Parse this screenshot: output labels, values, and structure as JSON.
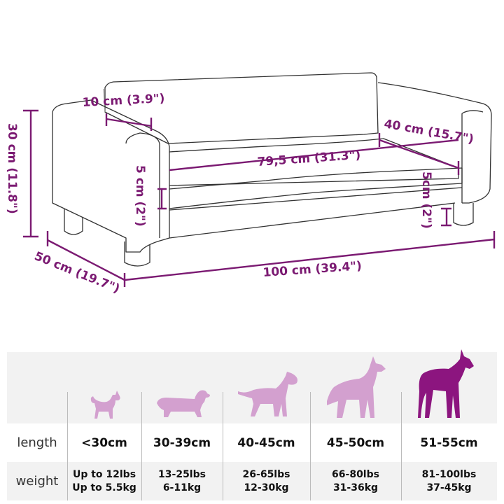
{
  "dimensions": {
    "backrest_thickness": "10 cm (3.9\")",
    "height": "30 cm (11.8\")",
    "seat_depth": "40 cm (15.7\")",
    "seat_width": "79,5 cm (31.3\")",
    "cushion_height": "5 cm (2\")",
    "leg_height": "5cm (2\")",
    "depth": "50 cm (19.7\")",
    "width": "100 cm (39.4\")"
  },
  "colors": {
    "accent": "#7b1a72",
    "dog_light": "#d3a0cf",
    "dog_highlight": "#8c157f",
    "table_bg": "#f2f2f2"
  },
  "table": {
    "row_labels": {
      "length": "length",
      "weight": "weight"
    },
    "columns": [
      {
        "icon": "chihuahua-icon",
        "length": "<30cm",
        "weight_lbs": "Up to 12lbs",
        "weight_kg": "Up to 5.5kg",
        "highlighted": false
      },
      {
        "icon": "dachshund-icon",
        "length": "30-39cm",
        "weight_lbs": "13-25lbs",
        "weight_kg": "6-11kg",
        "highlighted": false
      },
      {
        "icon": "bull-terrier-icon",
        "length": "40-45cm",
        "weight_lbs": "26-65lbs",
        "weight_kg": "12-30kg",
        "highlighted": false
      },
      {
        "icon": "shepherd-icon",
        "length": "45-50cm",
        "weight_lbs": "66-80lbs",
        "weight_kg": "31-36kg",
        "highlighted": false
      },
      {
        "icon": "great-dane-icon",
        "length": "51-55cm",
        "weight_lbs": "81-100lbs",
        "weight_kg": "37-45kg",
        "highlighted": true
      }
    ]
  }
}
